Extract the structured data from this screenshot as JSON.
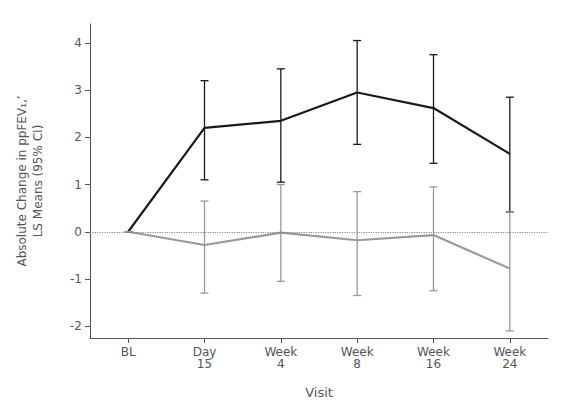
{
  "chart_data": {
    "type": "line",
    "xlabel": "Visit",
    "ylabel": "Absolute Change in ppFEV₁,’\nLS Means (95% CI)",
    "categories": [
      "BL",
      "Day\n15",
      "Week\n4",
      "Week\n8",
      "Week\n16",
      "Week\n24"
    ],
    "series": [
      {
        "color": "#1a1a1a",
        "values": [
          0.0,
          2.2,
          2.35,
          2.95,
          2.62,
          1.65
        ],
        "ci_lower": [
          0.0,
          1.1,
          1.05,
          1.85,
          1.45,
          0.42
        ],
        "ci_upper": [
          0.0,
          3.2,
          3.45,
          4.05,
          3.75,
          2.85
        ]
      },
      {
        "color": "#999999",
        "values": [
          0.0,
          -0.28,
          -0.02,
          -0.18,
          -0.07,
          -0.78
        ],
        "ci_lower": [
          0.0,
          -1.3,
          -1.05,
          -1.35,
          -1.25,
          -2.1
        ],
        "ci_upper": [
          0.0,
          0.65,
          1.0,
          0.85,
          0.95,
          0.42
        ]
      }
    ],
    "reference_lines": [
      {
        "y": 0,
        "line_style": "dotted",
        "color": "#888888"
      }
    ],
    "ylim": [
      -2.25,
      4.4
    ],
    "yticks": [
      -2,
      -1,
      0,
      1,
      2,
      3,
      4
    ],
    "grid": false
  }
}
